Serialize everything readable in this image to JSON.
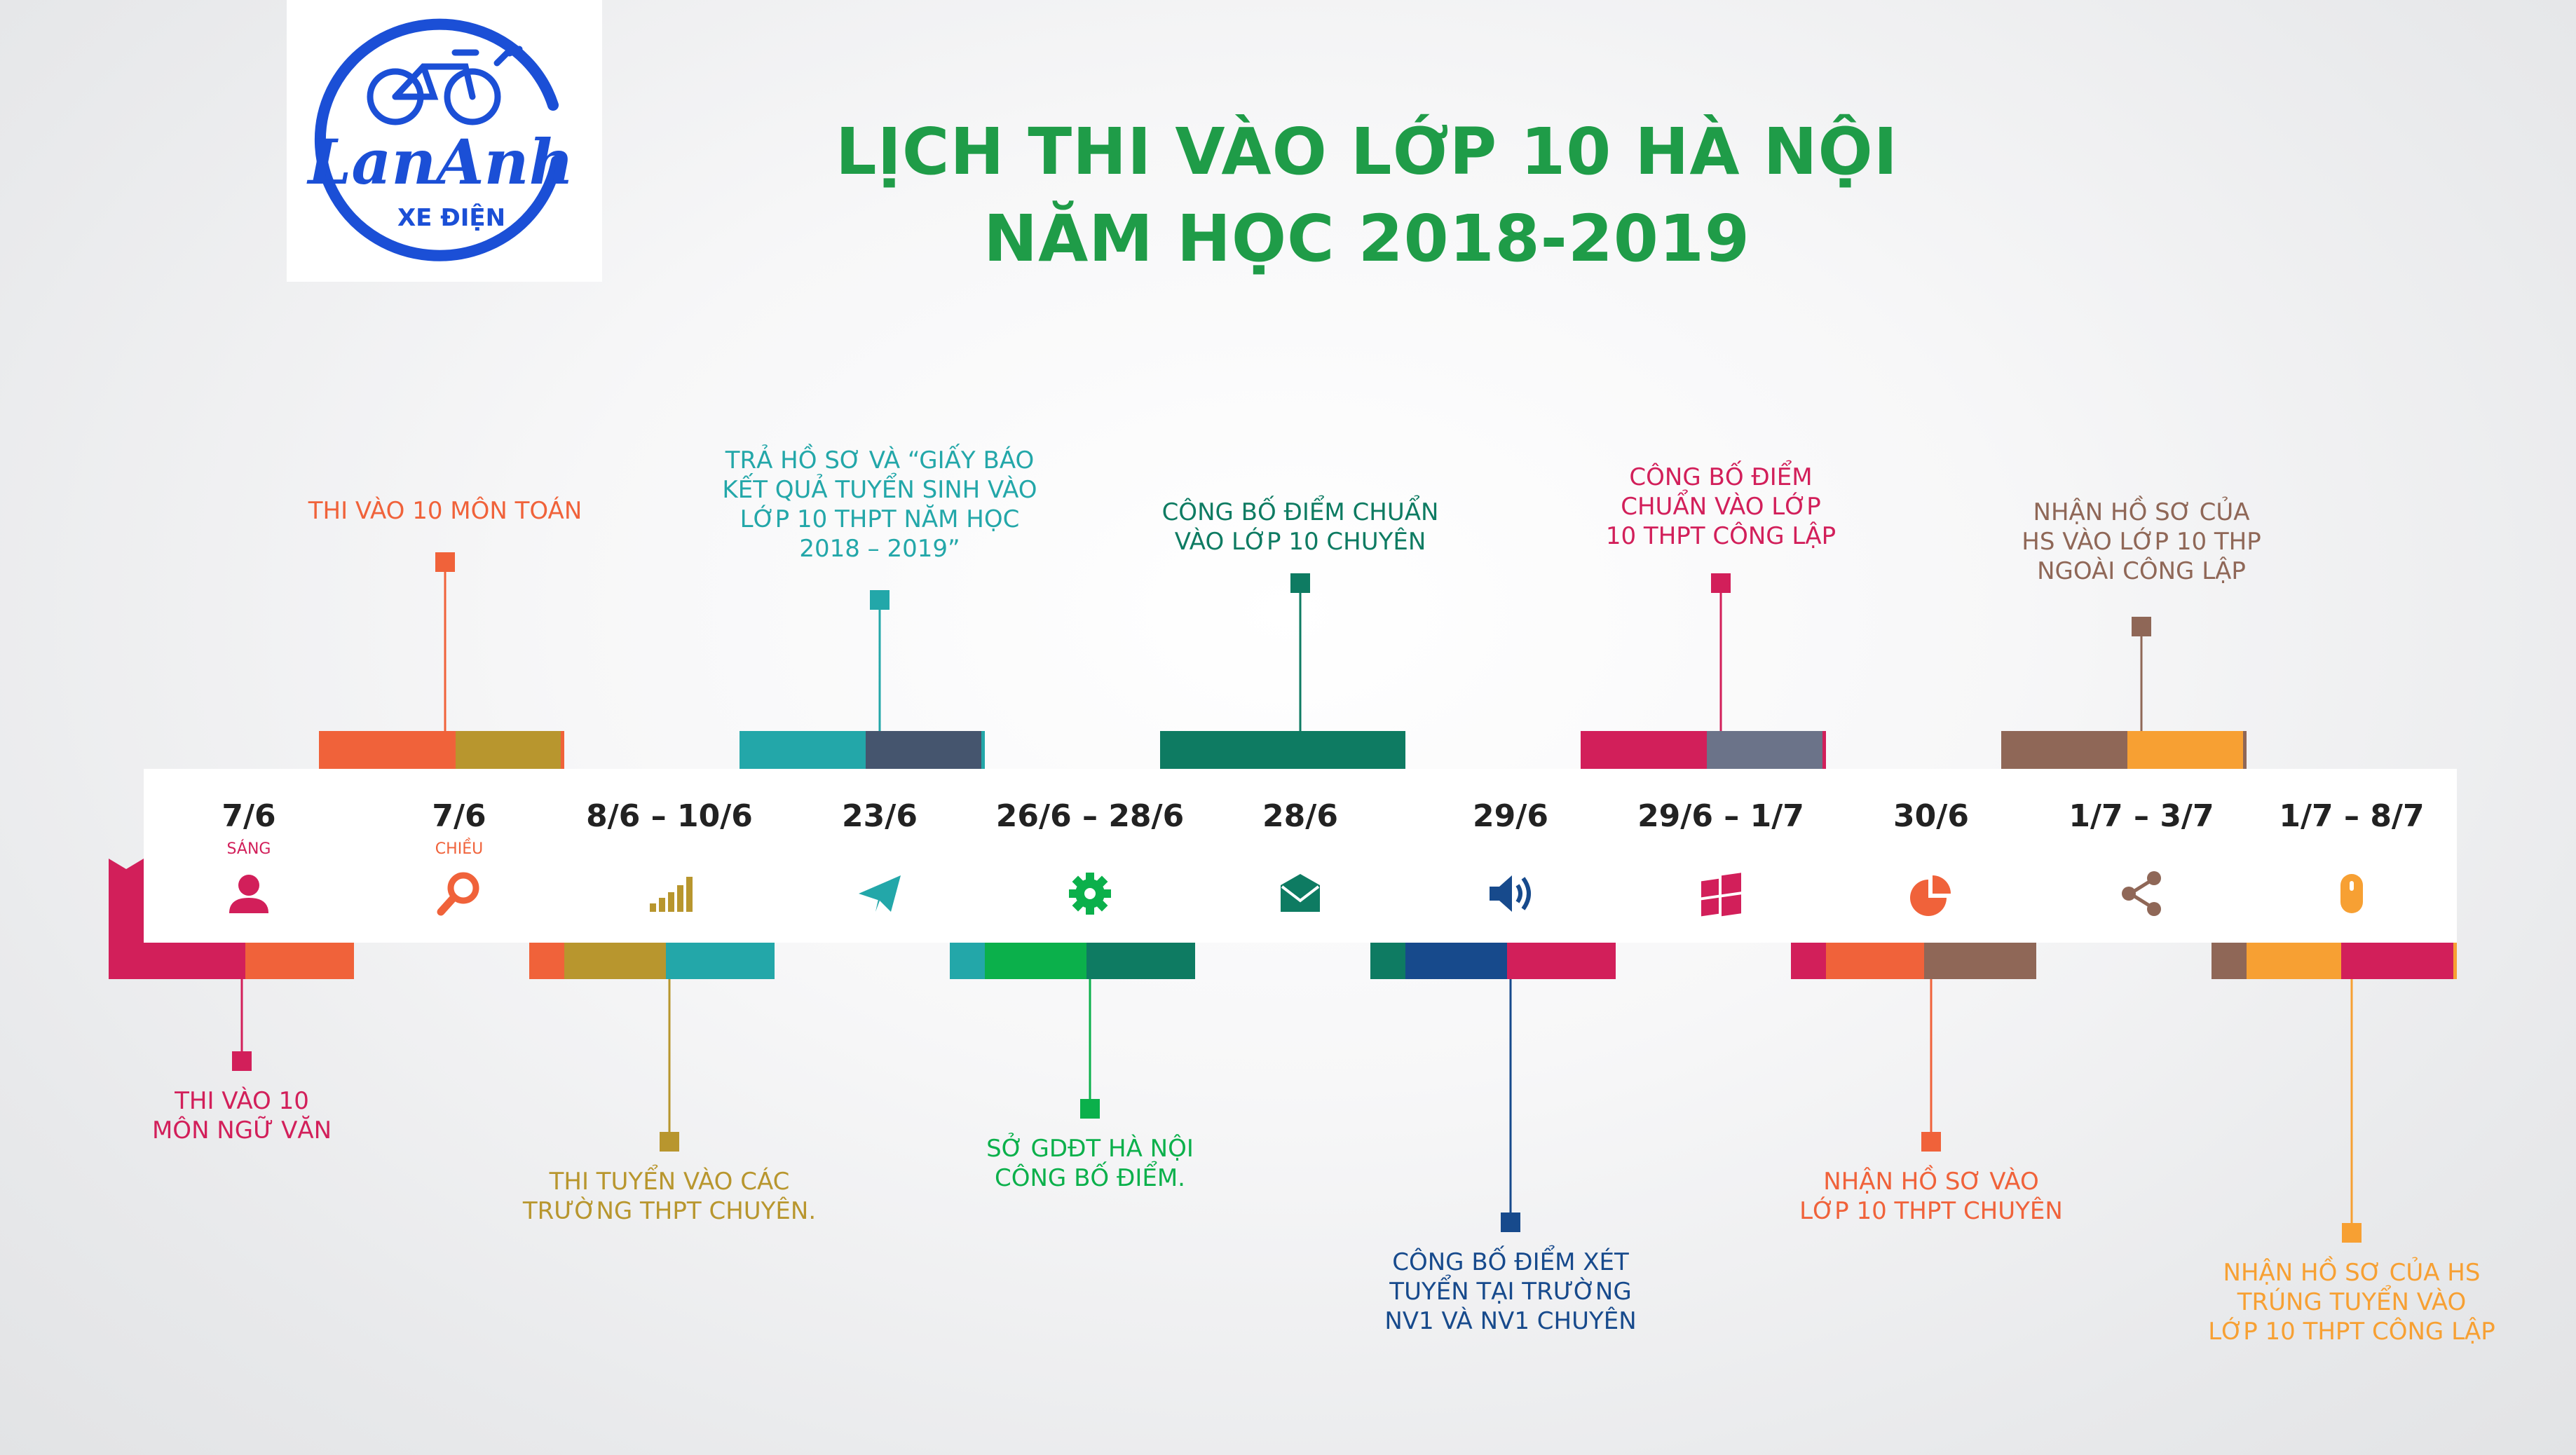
{
  "logo": {
    "brand": "LanAnh",
    "tagline": "XE ĐIỆN"
  },
  "title": {
    "line1": "LỊCH THI VÀO LỚP 10 HÀ NỘI",
    "line2": "NĂM HỌC 2018-2019"
  },
  "colors": {
    "title": "#1f9c48",
    "logo_blue": "#1b4fd6"
  },
  "timeline": [
    {
      "date": "7/6",
      "sub": "SÁNG",
      "icon": "user-icon",
      "color": "#d21f5a",
      "event": [
        "THI VÀO 10",
        "MÔN NGỮ VĂN"
      ],
      "position": "below"
    },
    {
      "date": "7/6",
      "sub": "CHIỀU",
      "icon": "search-icon",
      "color": "#f0623a",
      "event": [
        "THI VÀO 10 MÔN TOÁN"
      ],
      "position": "above"
    },
    {
      "date": "8/6 – 10/6",
      "sub": "",
      "icon": "signal-bars-icon",
      "color": "#b8962e",
      "event": [
        "THI TUYỂN VÀO CÁC",
        "TRƯỜNG THPT CHUYÊN."
      ],
      "position": "below"
    },
    {
      "date": "23/6",
      "sub": "",
      "icon": "paper-plane-icon",
      "color": "#23a7a9",
      "event": [
        "TRẢ HỒ SƠ VÀ “GIẤY BÁO",
        "KẾT QUẢ TUYỂN SINH VÀO",
        "LỚP 10 THPT NĂM HỌC",
        "2018 – 2019”"
      ],
      "position": "above"
    },
    {
      "date": "26/6 – 28/6",
      "sub": "",
      "icon": "gear-icon",
      "color": "#0bb04b",
      "event": [
        "SỞ GDĐT HÀ NỘI",
        "CÔNG BỐ ĐIỂM."
      ],
      "position": "below"
    },
    {
      "date": "28/6",
      "sub": "",
      "icon": "envelope-icon",
      "color": "#0e7b62",
      "event": [
        "CÔNG BỐ ĐIỂM CHUẨN",
        "VÀO LỚP 10 CHUYÊN"
      ],
      "position": "above"
    },
    {
      "date": "29/6",
      "sub": "",
      "icon": "speaker-icon",
      "color": "#174a8c",
      "event": [
        "CÔNG BỐ ĐIỂM XÉT",
        "TUYỂN TẠI TRƯỜNG",
        "NV1 VÀ NV1 CHUYÊN"
      ],
      "position": "below"
    },
    {
      "date": "29/6 – 1/7",
      "sub": "",
      "icon": "windows-icon",
      "color": "#d21f5a",
      "event": [
        "CÔNG BỐ ĐIỂM",
        "CHUẨN VÀO LỚP",
        "10 THPT CÔNG LẬP"
      ],
      "position": "above"
    },
    {
      "date": "30/6",
      "sub": "",
      "icon": "pie-chart-icon",
      "color": "#f0623a",
      "event": [
        "NHẬN HỒ SƠ VÀO",
        "LỚP 10 THPT CHUYÊN"
      ],
      "position": "below"
    },
    {
      "date": "1/7 – 3/7",
      "sub": "",
      "icon": "share-icon",
      "color": "#8f6757",
      "event": [
        "NHẬN HỒ SƠ CỦA",
        "HS VÀO LỚP 10 THP",
        "NGOÀI CÔNG LẬP"
      ],
      "position": "above"
    },
    {
      "date": "1/7 – 8/7",
      "sub": "",
      "icon": "mouse-icon",
      "color": "#f7a033",
      "event": [
        "NHẬN HỒ SƠ CỦA HS",
        "TRÚNG TUYỂN VÀO",
        "LỚP 10 THPT CÔNG LẬP"
      ],
      "position": "below"
    }
  ]
}
